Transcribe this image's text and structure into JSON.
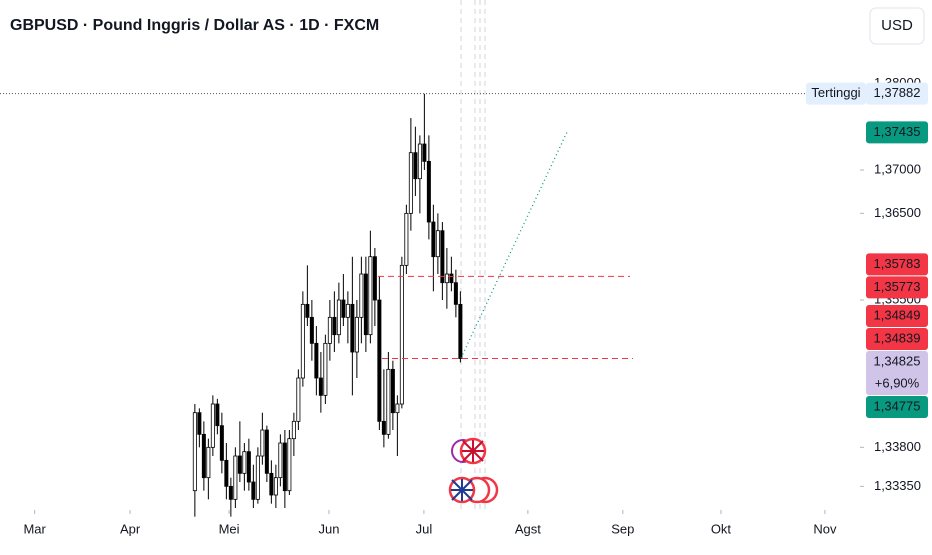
{
  "chart_data": {
    "type": "candlestick",
    "title": "GBPUSD · Pound Inggris / Dollar AS · 1D · FXCM",
    "currency": "USD",
    "up_color": "#ffffff",
    "down_color": "#000000",
    "outline_color": "#000000",
    "open": [
      1.333,
      1.342,
      1.3395,
      1.3345,
      1.338,
      1.343,
      1.3405,
      1.3365,
      1.3335,
      1.332,
      1.337,
      1.335,
      1.3375,
      1.334,
      1.332,
      1.337,
      1.34,
      1.335,
      1.3325,
      1.3345,
      1.3385,
      1.333,
      1.339,
      1.341,
      1.346,
      1.3545,
      1.353,
      1.35,
      1.346,
      1.344,
      1.35,
      1.353,
      1.351,
      1.355,
      1.353,
      1.3545,
      1.349,
      1.353,
      1.358,
      1.351,
      1.36,
      1.355,
      1.341,
      1.3395,
      1.347,
      1.342,
      1.343,
      1.359,
      1.365,
      1.372,
      1.369,
      1.373,
      1.371,
      1.364,
      1.36,
      1.363,
      1.357,
      1.358,
      1.357,
      1.3545
    ],
    "high": [
      1.343,
      1.3425,
      1.341,
      1.339,
      1.344,
      1.3436,
      1.342,
      1.3385,
      1.3345,
      1.338,
      1.341,
      1.3385,
      1.339,
      1.336,
      1.338,
      1.342,
      1.3405,
      1.3365,
      1.336,
      1.3395,
      1.34,
      1.34,
      1.342,
      1.347,
      1.356,
      1.359,
      1.355,
      1.352,
      1.349,
      1.351,
      1.355,
      1.356,
      1.357,
      1.358,
      1.356,
      1.36,
      1.355,
      1.36,
      1.36,
      1.363,
      1.361,
      1.3577,
      1.347,
      1.349,
      1.348,
      1.344,
      1.36,
      1.366,
      1.376,
      1.375,
      1.374,
      1.3788,
      1.374,
      1.366,
      1.365,
      1.364,
      1.361,
      1.36,
      1.3585,
      1.356
    ],
    "low": [
      1.33,
      1.338,
      1.333,
      1.332,
      1.337,
      1.3395,
      1.335,
      1.332,
      1.33,
      1.331,
      1.334,
      1.333,
      1.333,
      1.331,
      1.3315,
      1.336,
      1.334,
      1.3315,
      1.331,
      1.3335,
      1.331,
      1.3325,
      1.337,
      1.34,
      1.345,
      1.352,
      1.348,
      1.344,
      1.342,
      1.343,
      1.348,
      1.349,
      1.35,
      1.352,
      1.35,
      1.344,
      1.346,
      1.35,
      1.349,
      1.35,
      1.352,
      1.34,
      1.338,
      1.339,
      1.34,
      1.337,
      1.3425,
      1.358,
      1.363,
      1.367,
      1.365,
      1.37,
      1.362,
      1.356,
      1.358,
      1.355,
      1.354,
      1.356,
      1.353,
      1.3478
    ],
    "close": [
      1.342,
      1.3395,
      1.3345,
      1.338,
      1.343,
      1.3405,
      1.3365,
      1.3335,
      1.332,
      1.337,
      1.335,
      1.3375,
      1.334,
      1.332,
      1.337,
      1.34,
      1.335,
      1.3325,
      1.3345,
      1.3385,
      1.333,
      1.339,
      1.341,
      1.346,
      1.3545,
      1.353,
      1.35,
      1.346,
      1.344,
      1.35,
      1.353,
      1.351,
      1.355,
      1.353,
      1.3545,
      1.349,
      1.353,
      1.358,
      1.351,
      1.36,
      1.355,
      1.341,
      1.3395,
      1.347,
      1.342,
      1.343,
      1.359,
      1.365,
      1.372,
      1.369,
      1.373,
      1.371,
      1.364,
      1.36,
      1.363,
      1.357,
      1.358,
      1.357,
      1.3545,
      1.34825
    ],
    "ylim": [
      1.33077,
      1.38962
    ],
    "yticks": [
      {
        "value": 1.38,
        "label": "1,38000"
      },
      {
        "value": 1.37,
        "label": "1,37000"
      },
      {
        "value": 1.365,
        "label": "1,36500"
      },
      {
        "value": 1.355,
        "label": "1,35500"
      },
      {
        "value": 1.338,
        "label": "1,33800"
      },
      {
        "value": 1.3335,
        "label": "1,33350"
      }
    ],
    "xlim": [
      -43.3,
      147.8
    ],
    "xticks": [
      {
        "value": -35.6,
        "label": "Mar"
      },
      {
        "value": -14.4,
        "label": "Apr"
      },
      {
        "value": 7.6,
        "label": "Mei"
      },
      {
        "value": 29.8,
        "label": "Jun"
      },
      {
        "value": 50.9,
        "label": "Jul"
      },
      {
        "value": 74,
        "label": "Agst"
      },
      {
        "value": 95.1,
        "label": "Sep"
      },
      {
        "value": 116.9,
        "label": "Okt"
      },
      {
        "value": 140,
        "label": "Nov"
      }
    ],
    "price_labels": [
      {
        "name": "Tertinggi",
        "label": "1,37882",
        "value": 1.37882,
        "bg": "#e3effd",
        "color": "#131722"
      },
      {
        "label": "1,37435",
        "value": 1.37435,
        "bg": "#089981",
        "color": "#ffffff"
      },
      {
        "label": "1,35783",
        "value": 1.35783,
        "bg": "#f23645",
        "color": "#ffffff"
      },
      {
        "label": "1,35773",
        "value": 1.35773,
        "bg": "#f23645",
        "color": "#ffffff"
      },
      {
        "label": "1,34849",
        "value": 1.34849,
        "bg": "#f23645",
        "color": "#ffffff"
      },
      {
        "label": "1,34839",
        "value": 1.34839,
        "bg": "#f23645",
        "color": "#ffffff"
      },
      {
        "label": "1,34825",
        "change": "+6,90%",
        "value": 1.34825,
        "bg": "#d1c4e9",
        "color": "#131722"
      },
      {
        "label": "1,34775",
        "value": 1.34775,
        "bg": "#089981",
        "color": "#ffffff"
      }
    ]
  }
}
